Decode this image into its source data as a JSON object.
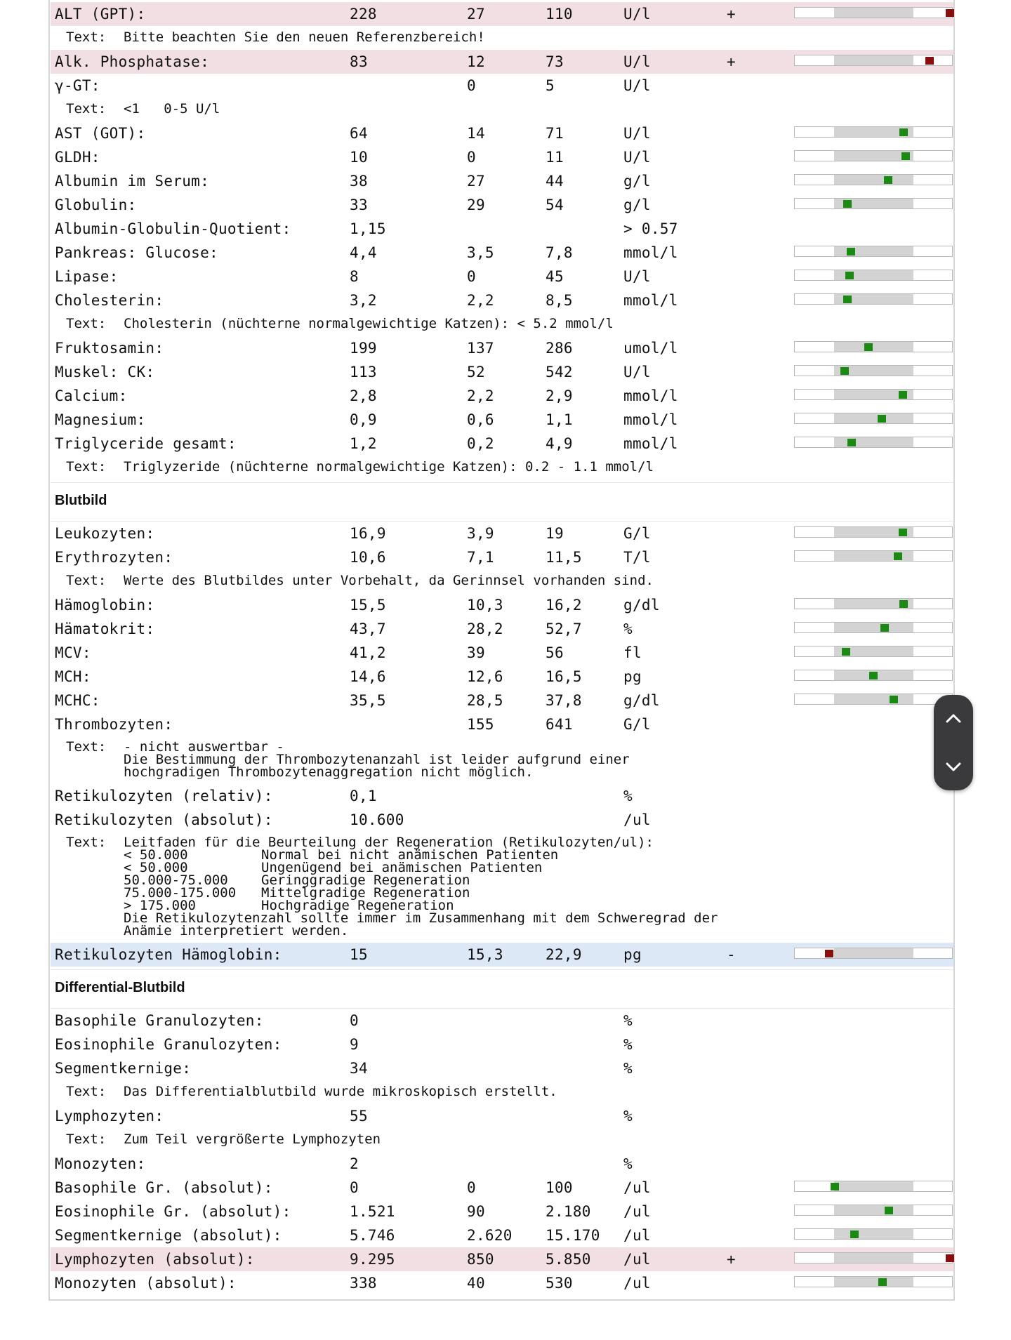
{
  "rows": [
    {
      "type": "row",
      "name": "ALT (GPT):",
      "value": "228",
      "min": "27",
      "max": "110",
      "unit": "U/l",
      "flag": "+",
      "highlight": "high",
      "level": 0.98
    },
    {
      "type": "note",
      "label": "Text:",
      "text": "Bitte beachten Sie den neuen Referenzbereich!"
    },
    {
      "type": "row",
      "name": "Alk. Phosphatase:",
      "value": "83",
      "min": "12",
      "max": "73",
      "unit": "U/l",
      "flag": "+",
      "highlight": "high",
      "level": 0.85
    },
    {
      "type": "row",
      "name": "γ-GT:",
      "value": "",
      "min": "0",
      "max": "5",
      "unit": "U/l"
    },
    {
      "type": "note",
      "label": "Text:",
      "text": "<1   0-5 U/l"
    },
    {
      "type": "row",
      "name": "AST (GOT):",
      "value": "64",
      "min": "14",
      "max": "71",
      "unit": "U/l",
      "level": 0.685
    },
    {
      "type": "row",
      "name": "GLDH:",
      "value": "10",
      "min": "0",
      "max": "11",
      "unit": "U/l",
      "level": 0.7
    },
    {
      "type": "row",
      "name": "Albumin im Serum:",
      "value": "38",
      "min": "27",
      "max": "44",
      "unit": "g/l",
      "level": 0.59
    },
    {
      "type": "row",
      "name": "Globulin:",
      "value": "33",
      "min": "29",
      "max": "54",
      "unit": "g/l",
      "level": 0.33
    },
    {
      "type": "row",
      "name": "Albumin-Globulin-Quotient:",
      "value": "1,15",
      "min": "",
      "max": "",
      "unit": "> 0.57"
    },
    {
      "type": "row",
      "name": "Pankreas: Glucose:",
      "value": "4,4",
      "min": "3,5",
      "max": "7,8",
      "unit": "mmol/l",
      "level": 0.355
    },
    {
      "type": "row",
      "name": "Lipase:",
      "value": "8",
      "min": "0",
      "max": "45",
      "unit": "U/l",
      "level": 0.345
    },
    {
      "type": "row",
      "name": "Cholesterin:",
      "value": "3,2",
      "min": "2,2",
      "max": "8,5",
      "unit": "mmol/l",
      "level": 0.33
    },
    {
      "type": "note",
      "label": "Text:",
      "text": "Cholesterin (nüchterne normalgewichtige Katzen): < 5.2 mmol/l"
    },
    {
      "type": "row",
      "name": "Fruktosamin:",
      "value": "199",
      "min": "137",
      "max": "286",
      "unit": "umol/l",
      "level": 0.465
    },
    {
      "type": "row",
      "name": "Muskel: CK:",
      "value": "113",
      "min": "52",
      "max": "542",
      "unit": "U/l",
      "level": 0.315
    },
    {
      "type": "row",
      "name": "Calcium:",
      "value": "2,8",
      "min": "2,2",
      "max": "2,9",
      "unit": "mmol/l",
      "level": 0.68
    },
    {
      "type": "row",
      "name": "Magnesium:",
      "value": "0,9",
      "min": "0,6",
      "max": "1,1",
      "unit": "mmol/l",
      "level": 0.55
    },
    {
      "type": "row",
      "name": "Triglyceride gesamt:",
      "value": "1,2",
      "min": "0,2",
      "max": "4,9",
      "unit": "mmol/l",
      "level": 0.36
    },
    {
      "type": "note",
      "label": "Text:",
      "text": "Triglyzeride (nüchterne normalgewichtige Katzen): 0.2 - 1.1 mmol/l"
    },
    {
      "type": "section",
      "title": "Blutbild"
    },
    {
      "type": "row",
      "name": "Leukozyten:",
      "value": "16,9",
      "min": "3,9",
      "max": "19",
      "unit": "G/l",
      "level": 0.68
    },
    {
      "type": "row",
      "name": "Erythrozyten:",
      "value": "10,6",
      "min": "7,1",
      "max": "11,5",
      "unit": "T/l",
      "level": 0.65
    },
    {
      "type": "note",
      "label": "Text:",
      "text": "Werte des Blutbildes unter Vorbehalt, da Gerinnsel vorhanden sind."
    },
    {
      "type": "row",
      "name": "Hämoglobin:",
      "value": "15,5",
      "min": "10,3",
      "max": "16,2",
      "unit": "g/dl",
      "level": 0.685
    },
    {
      "type": "row",
      "name": "Hämatokrit:",
      "value": "43,7",
      "min": "28,2",
      "max": "52,7",
      "unit": "%",
      "level": 0.565
    },
    {
      "type": "row",
      "name": "MCV:",
      "value": "41,2",
      "min": "39",
      "max": "56",
      "unit": "fl",
      "level": 0.325
    },
    {
      "type": "row",
      "name": "MCH:",
      "value": "14,6",
      "min": "12,6",
      "max": "16,5",
      "unit": "pg",
      "level": 0.495
    },
    {
      "type": "row",
      "name": "MCHC:",
      "value": "35,5",
      "min": "28,5",
      "max": "37,8",
      "unit": "g/dl",
      "level": 0.625
    },
    {
      "type": "row",
      "name": "Thrombozyten:",
      "value": "",
      "min": "155",
      "max": "641",
      "unit": "G/l"
    },
    {
      "type": "mnote",
      "label": "Text:",
      "lines": [
        [
          "- nicht auswertbar -",
          ""
        ],
        [
          "Die Bestimmung der Thrombozytenanzahl ist leider aufgrund einer",
          ""
        ],
        [
          "hochgradigen Thrombozytenaggregation nicht möglich.",
          ""
        ]
      ]
    },
    {
      "type": "row",
      "name": "Retikulozyten (relativ):",
      "value": "0,1",
      "min": "",
      "max": "",
      "unit": "%"
    },
    {
      "type": "row",
      "name": "Retikulozyten (absolut):",
      "value": "10.600",
      "min": "",
      "max": "",
      "unit": "/ul"
    },
    {
      "type": "mnote",
      "label": "Text:",
      "lines": [
        [
          "Leitfaden für die Beurteilung der Regeneration (Retikulozyten/ul):",
          ""
        ],
        [
          "< 50.000",
          "Normal bei nicht anämischen Patienten"
        ],
        [
          "< 50.000",
          "Ungenügend bei anämischen Patienten"
        ],
        [
          "50.000-75.000",
          "Geringgradige Regeneration"
        ],
        [
          "75.000-175.000",
          "Mittelgradige Regeneration"
        ],
        [
          "> 175.000",
          "Hochgradige Regeneration"
        ],
        [
          "Die Retikulozytenzahl sollte immer im Zusammenhang mit dem Schweregrad der",
          ""
        ],
        [
          "Anämie interpretiert werden.",
          ""
        ]
      ]
    },
    {
      "type": "row",
      "name": "Retikulozyten Hämoglobin:",
      "value": "15",
      "min": "15,3",
      "max": "22,9",
      "unit": "pg",
      "flag": "-",
      "highlight": "low",
      "level": 0.215
    },
    {
      "type": "section",
      "title": "Differential-Blutbild"
    },
    {
      "type": "row",
      "name": "Basophile Granulozyten:",
      "value": "0",
      "min": "",
      "max": "",
      "unit": "%"
    },
    {
      "type": "row",
      "name": "Eosinophile Granulozyten:",
      "value": "9",
      "min": "",
      "max": "",
      "unit": "%"
    },
    {
      "type": "row",
      "name": "Segmentkernige:",
      "value": "34",
      "min": "",
      "max": "",
      "unit": "%"
    },
    {
      "type": "note",
      "label": "Text:",
      "text": "Das Differentialblutbild wurde mikroskopisch erstellt."
    },
    {
      "type": "row",
      "name": "Lymphozyten:",
      "value": "55",
      "min": "",
      "max": "",
      "unit": "%"
    },
    {
      "type": "note",
      "label": "Text:",
      "text": "Zum Teil vergrößerte Lymphozyten"
    },
    {
      "type": "row",
      "name": "Monozyten:",
      "value": "2",
      "min": "",
      "max": "",
      "unit": "%"
    },
    {
      "type": "row",
      "name": "Basophile Gr. (absolut):",
      "value": "0",
      "min": "0",
      "max": "100",
      "unit": "/ul",
      "level": 0.25
    },
    {
      "type": "row",
      "name": "Eosinophile Gr. (absolut):",
      "value": "1.521",
      "min": "90",
      "max": "2.180",
      "unit": "/ul",
      "level": 0.595
    },
    {
      "type": "row",
      "name": "Segmentkernige (absolut):",
      "value": "5.746",
      "min": "2.620",
      "max": "15.170",
      "unit": "/ul",
      "level": 0.375
    },
    {
      "type": "row",
      "name": "Lymphozyten (absolut):",
      "value": "9.295",
      "min": "850",
      "max": "5.850",
      "unit": "/ul",
      "flag": "+",
      "highlight": "high",
      "level": 0.98
    },
    {
      "type": "row",
      "name": "Monozyten (absolut):",
      "value": "338",
      "min": "40",
      "max": "530",
      "unit": "/ul",
      "level": 0.555
    }
  ],
  "colors": {
    "in_range": "#1b8a12",
    "out_of_range": "#8b0e0e",
    "high_row": "#f2dfe3",
    "low_row": "#dde8f7"
  },
  "scroll_widget": {
    "up_icon": "chevron-up-icon",
    "down_icon": "chevron-down-icon"
  }
}
